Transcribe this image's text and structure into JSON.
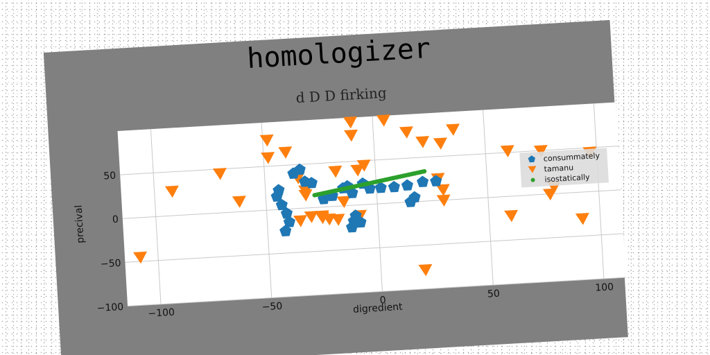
{
  "chart_data": {
    "type": "scatter",
    "title": "homologizer",
    "subtitle": "d D D firking",
    "xlabel": "digredient",
    "ylabel": "precival",
    "xlim": [
      -115,
      110
    ],
    "ylim": [
      -100,
      100
    ],
    "xticks": [
      -100,
      -50,
      0,
      50,
      100
    ],
    "yticks": [
      -100,
      -50,
      0,
      50
    ],
    "xtick_labels": [
      "−100",
      "−50",
      "0",
      "50",
      "100"
    ],
    "ytick_labels": [
      "−100",
      "−50",
      "0",
      "50"
    ],
    "grid": true,
    "legend_position": "right",
    "series": [
      {
        "name": "consummately",
        "marker": "pentagon",
        "color": "#1f77b4",
        "x": [
          -45,
          -43,
          -41,
          -40,
          -42,
          -44,
          -37,
          -34,
          -32,
          -29,
          -24,
          -15,
          -13,
          -11,
          -10,
          -11,
          -12,
          -8,
          -6,
          -3,
          2,
          8,
          14,
          21,
          17,
          15,
          27,
          -20
        ],
        "y": [
          15,
          5,
          -5,
          -15,
          -25,
          22,
          40,
          44,
          30,
          28,
          9,
          20,
          22,
          14,
          -12,
          -18,
          -25,
          -20,
          24,
          18,
          18,
          18,
          19,
          22,
          5,
          0,
          22,
          12
        ]
      },
      {
        "name": "tamanu",
        "marker": "triangle_down",
        "color": "#ff7f0e",
        "x": [
          -108,
          -92,
          -70,
          -62,
          -48,
          -48,
          -40,
          -32,
          -35,
          -30,
          -25,
          -18,
          -10,
          -10,
          5,
          15,
          22,
          30,
          36,
          60,
          75,
          80,
          78,
          92,
          97,
          28,
          30,
          -15,
          -32,
          -25,
          -22,
          -8,
          30,
          60,
          -5,
          -35,
          20,
          -8,
          -18
        ],
        "y": [
          -45,
          28,
          45,
          12,
          80,
          60,
          65,
          20,
          -14,
          -10,
          -12,
          -15,
          95,
          80,
          95,
          80,
          68,
          65,
          80,
          52,
          50,
          8,
          0,
          -30,
          45,
          25,
          12,
          5,
          15,
          -10,
          -14,
          -12,
          0,
          -22,
          45,
          35,
          -78,
          40,
          40
        ]
      },
      {
        "name": "isostatically",
        "marker": "point",
        "color": "#2ca02c",
        "x_range": [
          -28,
          22
        ],
        "y_range": [
          14,
          34
        ],
        "count": 60
      }
    ]
  }
}
